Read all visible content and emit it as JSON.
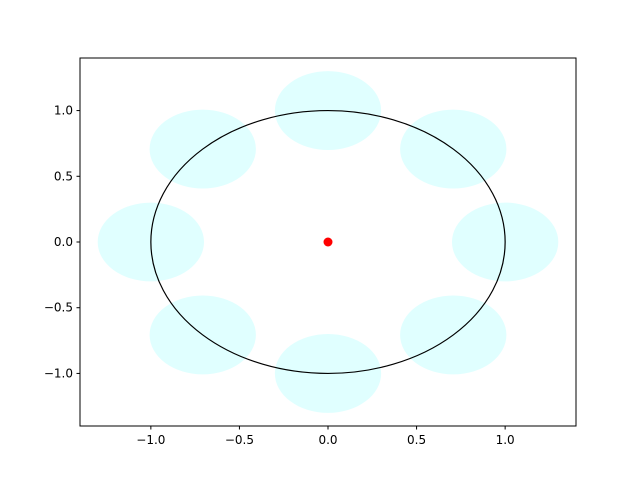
{
  "chart_data": {
    "type": "scatter",
    "xlim": [
      -1.4,
      1.4
    ],
    "ylim": [
      -1.4,
      1.4
    ],
    "xticks": [
      {
        "value": -1.0,
        "label": "−1.0"
      },
      {
        "value": -0.5,
        "label": "−0.5"
      },
      {
        "value": 0,
        "label": "0.0"
      },
      0.5,
      {
        "value": 1.0,
        "label": "1.0"
      }
    ],
    "yticks": [
      {
        "value": -1.0,
        "label": "−1.0"
      },
      {
        "value": -0.5,
        "label": "−0.5"
      },
      {
        "value": 0,
        "label": "0.0"
      },
      0.5,
      {
        "value": 1.0,
        "label": "1.0"
      }
    ],
    "circles": {
      "x": [
        1,
        0.7071,
        0,
        -0.7071,
        -1,
        -0.7071,
        0,
        0.7071
      ],
      "y": [
        0,
        0.7071,
        1,
        0.7071,
        0,
        -0.7071,
        -1,
        -0.7071
      ],
      "r": 0.3,
      "color": "#e0ffff"
    },
    "unit_circle": {
      "r": 1,
      "color": "#000000"
    },
    "series": [
      {
        "x": [
          0
        ],
        "values": [
          0
        ],
        "color": "#ff0000"
      }
    ]
  }
}
